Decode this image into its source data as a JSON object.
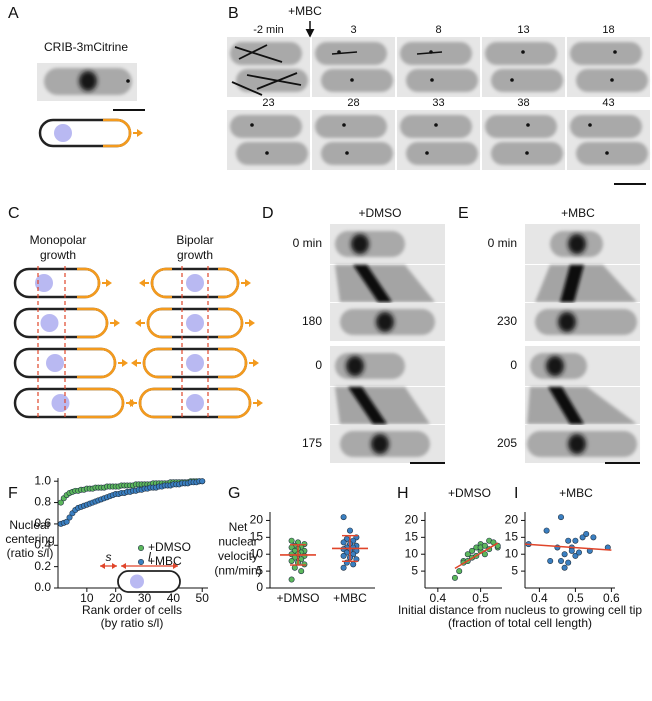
{
  "panels": {
    "A": {
      "label": "A",
      "title": "CRIB-3mCitrine"
    },
    "B": {
      "label": "B",
      "treatment": "+MBC",
      "times": [
        "-2 min",
        "3",
        "8",
        "13",
        "18",
        "23",
        "28",
        "33",
        "38",
        "43"
      ]
    },
    "C": {
      "label": "C",
      "monopolar": [
        "Monopolar",
        "growth"
      ],
      "bipolar": [
        "Bipolar",
        "growth"
      ]
    },
    "D": {
      "label": "D",
      "treatment": "+DMSO",
      "times": [
        "0 min",
        "180",
        "0",
        "175"
      ]
    },
    "E": {
      "label": "E",
      "treatment": "+MBC",
      "times": [
        "0 min",
        "230",
        "0",
        "205"
      ]
    }
  },
  "chart_data": [
    {
      "type": "scatter",
      "panel_label": "F",
      "ylabel": [
        "Nuclear",
        "centering",
        "(ratio s/l)"
      ],
      "xlabel": [
        "Rank order of cells",
        "(by ratio s/l)"
      ],
      "inset_labels": [
        "s",
        "l"
      ],
      "x": [
        1,
        2,
        3,
        4,
        5,
        6,
        7,
        8,
        9,
        10,
        11,
        12,
        13,
        14,
        15,
        16,
        17,
        18,
        19,
        20,
        21,
        22,
        23,
        24,
        25,
        26,
        27,
        28,
        29,
        30,
        31,
        32,
        33,
        34,
        35,
        36,
        37,
        38,
        39,
        40,
        41,
        42,
        43,
        44,
        45,
        46,
        47,
        48,
        49,
        50
      ],
      "series": [
        {
          "name": "+DMSO",
          "color": "#5cb85c",
          "values": [
            0.8,
            0.84,
            0.87,
            0.89,
            0.9,
            0.91,
            0.91,
            0.92,
            0.92,
            0.93,
            0.93,
            0.93,
            0.94,
            0.94,
            0.94,
            0.94,
            0.95,
            0.95,
            0.95,
            0.95,
            0.95,
            0.96,
            0.96,
            0.96,
            0.96,
            0.96,
            0.97,
            0.97,
            0.97,
            0.97,
            0.97,
            0.97,
            0.98,
            0.98,
            0.98,
            0.98,
            0.98,
            0.98,
            0.99,
            0.99,
            0.99,
            0.99,
            0.99,
            0.99,
            0.99,
            1,
            1,
            1,
            1,
            1
          ]
        },
        {
          "name": "+MBC",
          "color": "#3a7fc1",
          "values": [
            0.6,
            0.61,
            0.62,
            0.66,
            0.7,
            0.73,
            0.75,
            0.76,
            0.77,
            0.78,
            0.79,
            0.8,
            0.81,
            0.82,
            0.83,
            0.84,
            0.85,
            0.86,
            0.87,
            0.88,
            0.88,
            0.89,
            0.89,
            0.9,
            0.9,
            0.91,
            0.91,
            0.92,
            0.92,
            0.93,
            0.93,
            0.94,
            0.94,
            0.94,
            0.95,
            0.95,
            0.96,
            0.96,
            0.96,
            0.97,
            0.97,
            0.97,
            0.98,
            0.98,
            0.98,
            0.99,
            0.99,
            0.99,
            1,
            1
          ]
        }
      ],
      "xlim": [
        0,
        52
      ],
      "ylim": [
        0,
        1.03
      ],
      "xticks": [
        10,
        20,
        30,
        40,
        50
      ],
      "yticks": [
        {
          "value": 0,
          "label": "0.0"
        },
        0.2,
        0.4,
        0.6,
        0.8,
        {
          "value": 1,
          "label": "1.0"
        }
      ]
    },
    {
      "type": "strip",
      "panel_label": "G",
      "ylabel": [
        "Net",
        "nuclear",
        "velocity",
        "(nm/min)"
      ],
      "categories": [
        "+DMSO",
        "+MBC"
      ],
      "color": [
        "#5cb85c",
        "#3a7fc1"
      ],
      "values": [
        [
          14,
          13.5,
          13,
          12.5,
          12,
          12,
          11.5,
          11,
          11,
          10.5,
          10,
          10,
          9.5,
          9,
          8.5,
          8,
          7.5,
          7,
          6,
          5,
          2.5
        ],
        [
          21,
          17,
          15,
          14.5,
          14,
          13.5,
          13,
          12.5,
          12,
          12,
          11.5,
          11,
          11,
          10.5,
          10,
          9.5,
          9,
          8.5,
          7.5,
          7,
          6
        ]
      ],
      "means": [
        9.8,
        11.7
      ],
      "sds": [
        3.0,
        3.8
      ],
      "error_color": "#e0452a",
      "ylim": [
        0,
        22.5
      ],
      "yticks": [
        0,
        5,
        10,
        15,
        20
      ]
    },
    {
      "type": "scatter",
      "panel_label": "H",
      "subtitle": "+DMSO",
      "xlabel": [
        "Initial distance from nucleus to growing cell tip",
        "(fraction of total cell length)"
      ],
      "x": [
        0.44,
        0.45,
        0.46,
        0.46,
        0.47,
        0.47,
        0.48,
        0.48,
        0.49,
        0.49,
        0.5,
        0.5,
        0.5,
        0.51,
        0.51,
        0.52,
        0.52,
        0.53,
        0.54,
        0.54
      ],
      "values": [
        3,
        5,
        8,
        7.5,
        8,
        10,
        9,
        11,
        9.5,
        12,
        11,
        13,
        12,
        10,
        12.5,
        14,
        11.5,
        13.5,
        12,
        12.5
      ],
      "color": "#5cb85c",
      "fit": {
        "x": [
          0.44,
          0.54
        ],
        "values": [
          5.8,
          13.3
        ],
        "color": "#e0452a"
      },
      "xlim": [
        0.37,
        0.55
      ],
      "ylim": [
        0,
        22.5
      ],
      "xticks": [
        0.4,
        0.5
      ],
      "yticks": [
        5,
        10,
        15,
        20
      ]
    },
    {
      "type": "scatter",
      "panel_label": "I",
      "subtitle": "+MBC",
      "x": [
        0.37,
        0.42,
        0.43,
        0.45,
        0.46,
        0.46,
        0.47,
        0.47,
        0.48,
        0.48,
        0.49,
        0.49,
        0.5,
        0.5,
        0.51,
        0.52,
        0.53,
        0.54,
        0.55,
        0.59
      ],
      "values": [
        13,
        17,
        8,
        12,
        21,
        8,
        6,
        10,
        7.5,
        14,
        12,
        11,
        14,
        9.5,
        10.5,
        15,
        16,
        11,
        15,
        12
      ],
      "color": "#3a7fc1",
      "fit": {
        "x": [
          0.36,
          0.6
        ],
        "values": [
          13,
          11.2
        ],
        "color": "#e0452a"
      },
      "xlim": [
        0.36,
        0.61
      ],
      "ylim": [
        0,
        22.5
      ],
      "xticks": [
        0.4,
        0.5,
        0.6
      ],
      "yticks": [
        5,
        10,
        15,
        20
      ]
    }
  ]
}
